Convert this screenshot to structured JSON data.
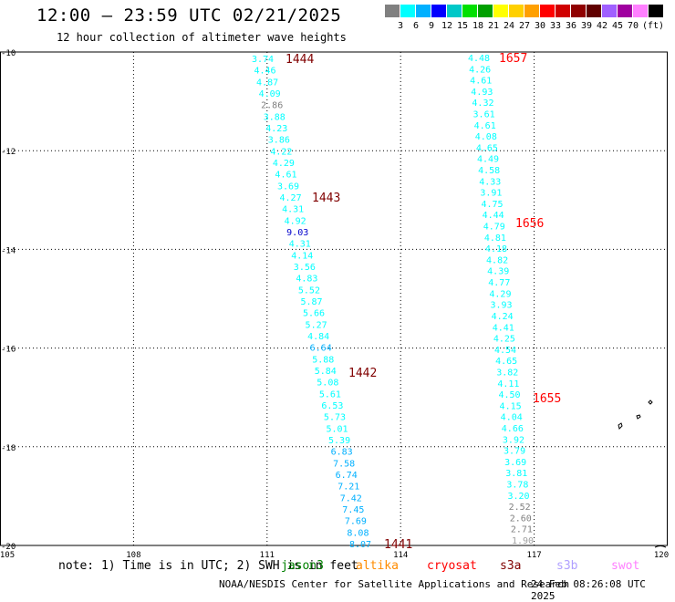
{
  "header": {
    "title": "12:00 – 23:59 UTC 02/21/2025",
    "subtitle": "12 hour collection of altimeter wave heights"
  },
  "scale": {
    "unit": "(ft)",
    "colors": [
      "#808080",
      "#00ffff",
      "#00b0ff",
      "#0000ff",
      "#00c8c8",
      "#00e000",
      "#00a000",
      "#ffff00",
      "#ffd000",
      "#ffa000",
      "#ff0000",
      "#d00000",
      "#900000",
      "#600000",
      "#a060ff",
      "#a000a0",
      "#ff80ff",
      "#000000"
    ],
    "labels": [
      "3",
      "6",
      "9",
      "12",
      "15",
      "18",
      "21",
      "24",
      "27",
      "30",
      "33",
      "36",
      "39",
      "42",
      "45",
      "70"
    ]
  },
  "map": {
    "lat_labels": [
      "-10",
      "-12",
      "-14",
      "-16",
      "-18",
      "-20"
    ],
    "lon_labels": [
      "105",
      "108",
      "111",
      "114",
      "117",
      "120"
    ],
    "tracks": [
      {
        "values": [
          "3.74",
          "4.46",
          "4.87",
          "4.09",
          "2.86",
          "3.88",
          "4.23",
          "3.86",
          "4.22",
          "4.29",
          "4.61",
          "3.69",
          "4.27",
          "4.31",
          "4.92",
          "9.03",
          "4.31",
          "4.14",
          "3.56",
          "4.83",
          "5.52",
          "5.87",
          "5.66",
          "5.27",
          "4.84",
          "6.64",
          "5.88",
          "5.84",
          "5.08",
          "5.61",
          "6.53",
          "5.73",
          "5.01",
          "5.39",
          "6.83",
          "7.58",
          "6.74",
          "7.21",
          "7.42",
          "7.45",
          "7.69",
          "8.08",
          "8.07"
        ],
        "colors": [
          "#00ffff",
          "#00ffff",
          "#00ffff",
          "#00ffff",
          "#808080",
          "#00ffff",
          "#00ffff",
          "#00ffff",
          "#00ffff",
          "#00ffff",
          "#00ffff",
          "#00ffff",
          "#00ffff",
          "#00ffff",
          "#00ffff",
          "#0000cc",
          "#00ffff",
          "#00ffff",
          "#00ffff",
          "#00ffff",
          "#00ffff",
          "#00ffff",
          "#00ffff",
          "#00ffff",
          "#00ffff",
          "#00b0ff",
          "#00ffff",
          "#00ffff",
          "#00ffff",
          "#00ffff",
          "#00ffff",
          "#00ffff",
          "#00ffff",
          "#00ffff",
          "#00b0ff",
          "#00b0ff",
          "#00b0ff",
          "#00b0ff",
          "#00b0ff",
          "#00b0ff",
          "#00b0ff",
          "#00b0ff",
          "#00b0ff"
        ],
        "times": [
          "1444",
          "1443",
          "1442",
          "1441"
        ],
        "time_color": "#800000"
      },
      {
        "values": [
          "4.48",
          "4.26",
          "4.61",
          "4.93",
          "4.32",
          "3.61",
          "4.61",
          "4.08",
          "4.65",
          "4.49",
          "4.58",
          "4.33",
          "3.91",
          "4.75",
          "4.44",
          "4.79",
          "4.81",
          "4.18",
          "4.82",
          "4.39",
          "4.77",
          "4.29",
          "3.93",
          "4.24",
          "4.41",
          "4.25",
          "4.54",
          "4.65",
          "3.82",
          "4.11",
          "4.50",
          "4.15",
          "4.04",
          "4.66",
          "3.92",
          "3.79",
          "3.69",
          "3.81",
          "3.78",
          "3.20",
          "2.52",
          "2.60",
          "2.71",
          "1.90"
        ],
        "colors": [
          "#00ffff",
          "#00ffff",
          "#00ffff",
          "#00ffff",
          "#00ffff",
          "#00ffff",
          "#00ffff",
          "#00ffff",
          "#00ffff",
          "#00ffff",
          "#00ffff",
          "#00ffff",
          "#00ffff",
          "#00ffff",
          "#00ffff",
          "#00ffff",
          "#00ffff",
          "#00ffff",
          "#00ffff",
          "#00ffff",
          "#00ffff",
          "#00ffff",
          "#00ffff",
          "#00ffff",
          "#00ffff",
          "#00ffff",
          "#00ffff",
          "#00ffff",
          "#00ffff",
          "#00ffff",
          "#00ffff",
          "#00ffff",
          "#00ffff",
          "#00ffff",
          "#00ffff",
          "#00ffff",
          "#00ffff",
          "#00ffff",
          "#00ffff",
          "#00ffff",
          "#808080",
          "#808080",
          "#808080",
          "#a0a0a0"
        ],
        "times": [
          "1657",
          "1656",
          "1655"
        ],
        "time_color": "#ff0000"
      }
    ]
  },
  "footer": {
    "note": "note: 1) Time is in UTC; 2) SWH is in feet",
    "satellites": [
      {
        "name": "jason3",
        "color": "#008000"
      },
      {
        "name": "altika",
        "color": "#ff8c00"
      },
      {
        "name": "cryosat",
        "color": "#ff0000"
      },
      {
        "name": "s3a",
        "color": "#800000"
      },
      {
        "name": "s3b",
        "color": "#b0a0ff"
      },
      {
        "name": "swot",
        "color": "#ff80ff"
      }
    ],
    "credit": "NOAA/NESDIS Center for Satellite Applications and Research",
    "timestamp": "24 Feb 08:26:08 UTC 2025"
  }
}
